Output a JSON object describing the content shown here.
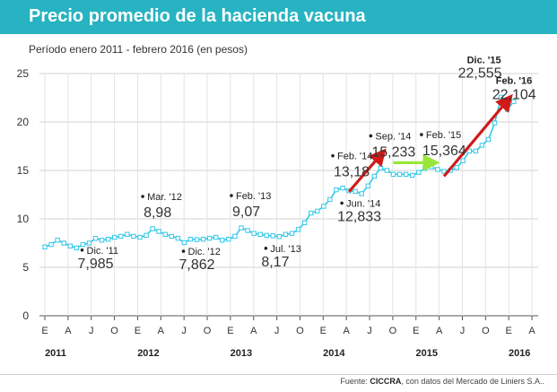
{
  "header": {
    "title": "Precio promedio de la hacienda vacuna",
    "subtitle": "Período enero 2011 - febrero 2016  (en pesos)"
  },
  "footer": {
    "prefix": "Fuente: ",
    "source": "CICCRA",
    "suffix": ", con datos del Mercado de Liniers S.A.."
  },
  "colors": {
    "title_bar": "#27b3c1",
    "line": "#33c8e8",
    "up_arrow": "#d11a1a",
    "flat_arrow": "#99e63a"
  },
  "chart_data": {
    "type": "line",
    "ylim": [
      0,
      25
    ],
    "yticks": [
      "0",
      "5",
      "10",
      "15",
      "20",
      "25"
    ],
    "month_labels": [
      "E",
      "A",
      "J",
      "O"
    ],
    "final_month_labels": [
      "E",
      "A"
    ],
    "years": [
      "2011",
      "2012",
      "2013",
      "2014",
      "2015",
      "2016"
    ],
    "series": [
      {
        "values": [
          7.1,
          7.35,
          7.8,
          7.5,
          7.2,
          7.0,
          7.35,
          7.5,
          7.985,
          7.8,
          7.9,
          8.1,
          8.2,
          8.4,
          8.2,
          8.1,
          8.3,
          8.98,
          8.7,
          8.4,
          8.2,
          8.0,
          7.55,
          7.9,
          7.862,
          7.9,
          8.0,
          8.1,
          7.8,
          7.9,
          8.2,
          9.07,
          8.8,
          8.5,
          8.4,
          8.3,
          8.25,
          8.17,
          8.4,
          8.5,
          8.9,
          9.6,
          10.6,
          10.8,
          11.3,
          12.0,
          13.0,
          13.18,
          12.9,
          12.833,
          12.6,
          13.4,
          14.4,
          15.233,
          15.0,
          14.6,
          14.6,
          14.6,
          14.5,
          14.8,
          15.2,
          15.364,
          15.1,
          14.9,
          15.0,
          15.3,
          16.0,
          17.0,
          17.0,
          17.6,
          18.2,
          19.9,
          22.555,
          21.3,
          22.104
        ]
      }
    ],
    "annotations": [
      {
        "index": 8,
        "date": "Dic. '11",
        "value": "7,985",
        "position": "below"
      },
      {
        "index": 17,
        "date": "Mar. '12",
        "value": "8,98",
        "position": "above"
      },
      {
        "index": 24,
        "date": "Dic. '12",
        "value": "7,862",
        "position": "below"
      },
      {
        "index": 31,
        "date": "Feb. '13",
        "value": "9,07",
        "position": "above"
      },
      {
        "index": 37,
        "date": "Jul. '13",
        "value": "8,17",
        "position": "below"
      },
      {
        "index": 47,
        "date": "Feb. '14",
        "value": "13,18",
        "position": "above"
      },
      {
        "index": 49,
        "date": "Jun. '14",
        "value": "12,833",
        "position": "below"
      },
      {
        "index": 53,
        "date": "Sep. '14",
        "value": "15,233",
        "position": "above"
      },
      {
        "index": 61,
        "date": "Feb. '15",
        "value": "15,364",
        "position": "above"
      },
      {
        "index": 72,
        "date": "Dic. '15",
        "value": "22,555",
        "position": "top"
      },
      {
        "index": 74,
        "date": "Feb. '16",
        "value": "22,104",
        "position": "right"
      }
    ],
    "arrows": [
      {
        "type": "up",
        "from_index": 48,
        "from_value": 12.8,
        "to_index": 53,
        "to_value": 16.6
      },
      {
        "type": "flat",
        "from_index": 55,
        "from_value": 15.8,
        "to_index": 61,
        "to_value": 15.8
      },
      {
        "type": "up",
        "from_index": 63,
        "from_value": 14.4,
        "to_index": 73,
        "to_value": 22.2
      }
    ],
    "grid": true,
    "legend": "none"
  }
}
